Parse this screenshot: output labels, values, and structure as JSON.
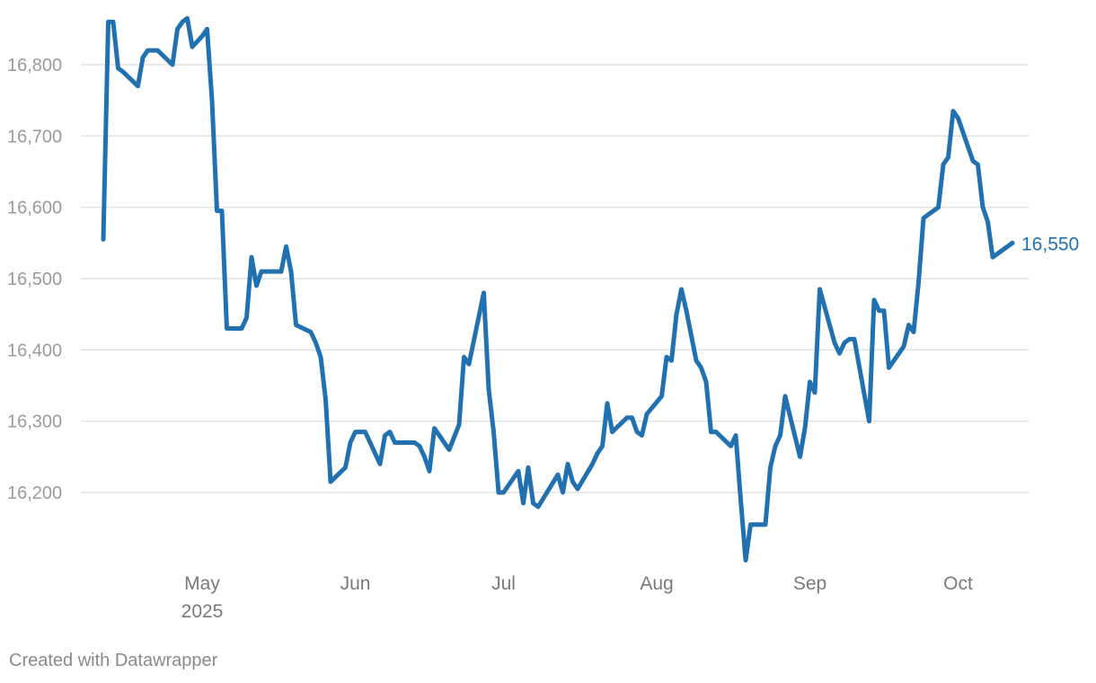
{
  "colors": {
    "line": "#2171b0",
    "grid": "#dcdcdc",
    "tick": "#9a9a9a",
    "end_label": "#2171b0"
  },
  "footer": {
    "credit": "Created with Datawrapper"
  },
  "chart_data": {
    "type": "line",
    "ylim": [
      16100,
      16870
    ],
    "y_ticks": [
      {
        "value": 16800,
        "label": "16,800"
      },
      {
        "value": 16700,
        "label": "16,700"
      },
      {
        "value": 16600,
        "label": "16,600"
      },
      {
        "value": 16500,
        "label": "16,500"
      },
      {
        "value": 16400,
        "label": "16,400"
      },
      {
        "value": 16300,
        "label": "16,300"
      },
      {
        "value": 16200,
        "label": "16,200"
      }
    ],
    "x_ticks": [
      {
        "date": "2025-05-01",
        "label": "May",
        "sublabel": "2025"
      },
      {
        "date": "2025-06-01",
        "label": "Jun",
        "sublabel": ""
      },
      {
        "date": "2025-07-01",
        "label": "Jul",
        "sublabel": ""
      },
      {
        "date": "2025-08-01",
        "label": "Aug",
        "sublabel": ""
      },
      {
        "date": "2025-09-01",
        "label": "Sep",
        "sublabel": ""
      },
      {
        "date": "2025-10-01",
        "label": "Oct",
        "sublabel": ""
      }
    ],
    "x_range": [
      "2025-04-11",
      "2025-10-08"
    ],
    "grid": true,
    "end_label": "16,550",
    "series": [
      {
        "points": [
          [
            "2025-04-11",
            16555
          ],
          [
            "2025-04-12",
            16860
          ],
          [
            "2025-04-13",
            16860
          ],
          [
            "2025-04-14",
            16795
          ],
          [
            "2025-04-15",
            16790
          ],
          [
            "2025-04-18",
            16770
          ],
          [
            "2025-04-19",
            16810
          ],
          [
            "2025-04-20",
            16820
          ],
          [
            "2025-04-22",
            16820
          ],
          [
            "2025-04-25",
            16800
          ],
          [
            "2025-04-26",
            16850
          ],
          [
            "2025-04-27",
            16860
          ],
          [
            "2025-04-28",
            16865
          ],
          [
            "2025-04-29",
            16825
          ],
          [
            "2025-05-01",
            16840
          ],
          [
            "2025-05-02",
            16850
          ],
          [
            "2025-05-03",
            16750
          ],
          [
            "2025-05-04",
            16595
          ],
          [
            "2025-05-05",
            16595
          ],
          [
            "2025-05-06",
            16430
          ],
          [
            "2025-05-09",
            16430
          ],
          [
            "2025-05-10",
            16445
          ],
          [
            "2025-05-11",
            16530
          ],
          [
            "2025-05-12",
            16490
          ],
          [
            "2025-05-13",
            16510
          ],
          [
            "2025-05-17",
            16510
          ],
          [
            "2025-05-18",
            16545
          ],
          [
            "2025-05-19",
            16510
          ],
          [
            "2025-05-20",
            16435
          ],
          [
            "2025-05-23",
            16425
          ],
          [
            "2025-05-24",
            16410
          ],
          [
            "2025-05-25",
            16390
          ],
          [
            "2025-05-26",
            16330
          ],
          [
            "2025-05-27",
            16215
          ],
          [
            "2025-05-30",
            16235
          ],
          [
            "2025-05-31",
            16270
          ],
          [
            "2025-06-01",
            16285
          ],
          [
            "2025-06-03",
            16285
          ],
          [
            "2025-06-06",
            16240
          ],
          [
            "2025-06-07",
            16280
          ],
          [
            "2025-06-08",
            16285
          ],
          [
            "2025-06-09",
            16270
          ],
          [
            "2025-06-13",
            16270
          ],
          [
            "2025-06-14",
            16265
          ],
          [
            "2025-06-15",
            16250
          ],
          [
            "2025-06-16",
            16230
          ],
          [
            "2025-06-17",
            16290
          ],
          [
            "2025-06-20",
            16260
          ],
          [
            "2025-06-22",
            16295
          ],
          [
            "2025-06-23",
            16390
          ],
          [
            "2025-06-24",
            16380
          ],
          [
            "2025-06-27",
            16480
          ],
          [
            "2025-06-28",
            16345
          ],
          [
            "2025-06-29",
            16285
          ],
          [
            "2025-06-30",
            16200
          ],
          [
            "2025-07-01",
            16200
          ],
          [
            "2025-07-04",
            16230
          ],
          [
            "2025-07-05",
            16185
          ],
          [
            "2025-07-06",
            16235
          ],
          [
            "2025-07-07",
            16185
          ],
          [
            "2025-07-08",
            16180
          ],
          [
            "2025-07-12",
            16225
          ],
          [
            "2025-07-13",
            16200
          ],
          [
            "2025-07-14",
            16240
          ],
          [
            "2025-07-15",
            16215
          ],
          [
            "2025-07-16",
            16205
          ],
          [
            "2025-07-19",
            16240
          ],
          [
            "2025-07-20",
            16255
          ],
          [
            "2025-07-21",
            16265
          ],
          [
            "2025-07-22",
            16325
          ],
          [
            "2025-07-23",
            16285
          ],
          [
            "2025-07-26",
            16305
          ],
          [
            "2025-07-27",
            16305
          ],
          [
            "2025-07-28",
            16285
          ],
          [
            "2025-07-29",
            16280
          ],
          [
            "2025-07-30",
            16310
          ],
          [
            "2025-08-02",
            16335
          ],
          [
            "2025-08-03",
            16390
          ],
          [
            "2025-08-04",
            16385
          ],
          [
            "2025-08-05",
            16450
          ],
          [
            "2025-08-06",
            16485
          ],
          [
            "2025-08-07",
            16455
          ],
          [
            "2025-08-09",
            16385
          ],
          [
            "2025-08-10",
            16375
          ],
          [
            "2025-08-11",
            16355
          ],
          [
            "2025-08-12",
            16285
          ],
          [
            "2025-08-13",
            16285
          ],
          [
            "2025-08-16",
            16265
          ],
          [
            "2025-08-17",
            16280
          ],
          [
            "2025-08-18",
            16190
          ],
          [
            "2025-08-19",
            16105
          ],
          [
            "2025-08-20",
            16155
          ],
          [
            "2025-08-23",
            16155
          ],
          [
            "2025-08-24",
            16235
          ],
          [
            "2025-08-25",
            16265
          ],
          [
            "2025-08-26",
            16280
          ],
          [
            "2025-08-27",
            16335
          ],
          [
            "2025-08-30",
            16250
          ],
          [
            "2025-08-31",
            16290
          ],
          [
            "2025-09-01",
            16355
          ],
          [
            "2025-09-02",
            16340
          ],
          [
            "2025-09-03",
            16485
          ],
          [
            "2025-09-06",
            16410
          ],
          [
            "2025-09-07",
            16395
          ],
          [
            "2025-09-08",
            16410
          ],
          [
            "2025-09-09",
            16415
          ],
          [
            "2025-09-10",
            16415
          ],
          [
            "2025-09-13",
            16300
          ],
          [
            "2025-09-14",
            16470
          ],
          [
            "2025-09-15",
            16455
          ],
          [
            "2025-09-16",
            16455
          ],
          [
            "2025-09-17",
            16375
          ],
          [
            "2025-09-20",
            16405
          ],
          [
            "2025-09-21",
            16435
          ],
          [
            "2025-09-22",
            16425
          ],
          [
            "2025-09-23",
            16495
          ],
          [
            "2025-09-24",
            16585
          ],
          [
            "2025-09-27",
            16600
          ],
          [
            "2025-09-28",
            16660
          ],
          [
            "2025-09-29",
            16670
          ],
          [
            "2025-09-30",
            16735
          ],
          [
            "2025-10-01",
            16725
          ],
          [
            "2025-10-04",
            16665
          ],
          [
            "2025-10-05",
            16660
          ],
          [
            "2025-10-06",
            16600
          ],
          [
            "2025-10-07",
            16580
          ],
          [
            "2025-10-08",
            16530
          ],
          [
            "2025-10-12",
            16550
          ]
        ]
      }
    ]
  }
}
